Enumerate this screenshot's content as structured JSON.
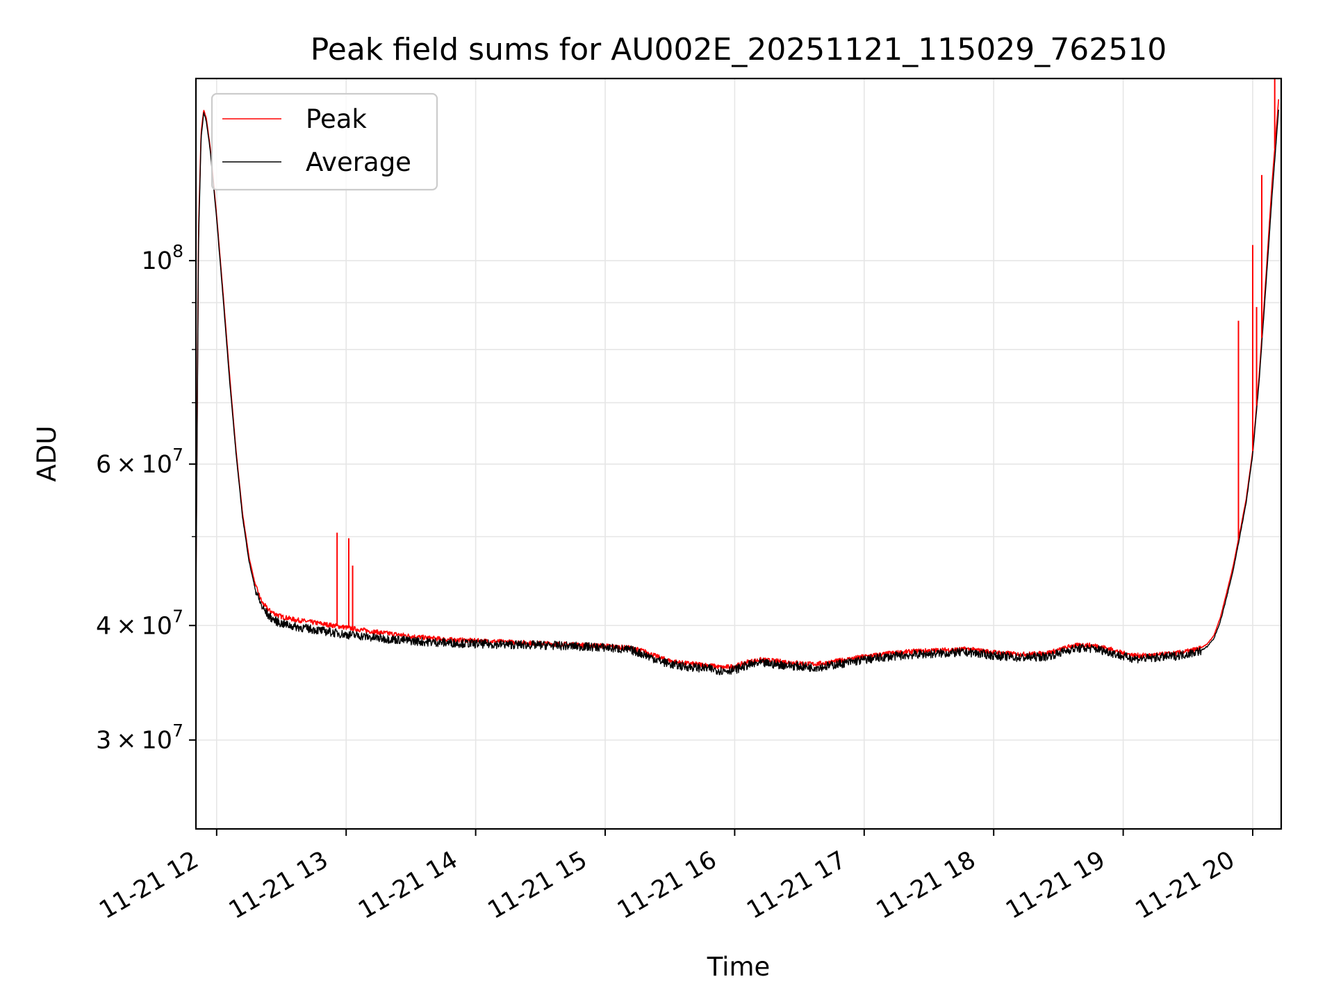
{
  "chart_data": {
    "type": "line",
    "title": "Peak field sums for AU002E_20251121_115029_762510",
    "xlabel": "Time",
    "ylabel": "ADU",
    "yscale": "log",
    "ylim": [
      24000000,
      158000000
    ],
    "xlim": [
      11.84,
      20.22
    ],
    "grid": true,
    "legend_position": "upper left",
    "x_ticks": [
      12,
      13,
      14,
      15,
      16,
      17,
      18,
      19,
      20
    ],
    "x_tick_labels": [
      "11-21 12",
      "11-21 13",
      "11-21 14",
      "11-21 15",
      "11-21 16",
      "11-21 17",
      "11-21 18",
      "11-21 19",
      "11-21 20"
    ],
    "y_ticks": [
      {
        "value": 100000000,
        "mantissa": "",
        "exponent": "8",
        "base": "10"
      },
      {
        "value": 60000000,
        "mantissa": "6",
        "exponent": "7",
        "base": "10"
      },
      {
        "value": 40000000,
        "mantissa": "4",
        "exponent": "7",
        "base": "10"
      },
      {
        "value": 30000000,
        "mantissa": "3",
        "exponent": "7",
        "base": "10"
      }
    ],
    "times_symbol": "×",
    "series": [
      {
        "name": "Peak",
        "color": "#ff0000",
        "x": [
          11.84,
          11.86,
          11.88,
          11.9,
          11.92,
          11.95,
          12.0,
          12.05,
          12.1,
          12.15,
          12.2,
          12.25,
          12.3,
          12.35,
          12.4,
          12.45,
          12.5,
          12.6,
          12.7,
          12.8,
          12.9,
          13.0,
          13.1,
          13.2,
          13.4,
          13.6,
          13.8,
          14.0,
          14.2,
          14.4,
          14.6,
          14.8,
          15.0,
          15.2,
          15.3,
          15.4,
          15.5,
          15.6,
          15.7,
          15.8,
          15.9,
          16.0,
          16.1,
          16.2,
          16.3,
          16.4,
          16.5,
          16.6,
          16.7,
          16.8,
          16.9,
          17.0,
          17.2,
          17.4,
          17.6,
          17.8,
          18.0,
          18.2,
          18.4,
          18.5,
          18.6,
          18.7,
          18.8,
          18.9,
          19.0,
          19.1,
          19.2,
          19.3,
          19.4,
          19.5,
          19.6,
          19.65,
          19.7,
          19.75,
          19.8,
          19.85,
          19.9,
          19.95,
          20.0,
          20.05,
          20.1,
          20.15,
          20.2
        ],
        "y": [
          44000000,
          108000000,
          138000000,
          146000000,
          143000000,
          133000000,
          112000000,
          92000000,
          75000000,
          62000000,
          53000000,
          47500000,
          44200000,
          42400000,
          41600000,
          41200000,
          40900000,
          40600000,
          40400000,
          40200000,
          40000000,
          39800000,
          39600000,
          39400000,
          39100000,
          38800000,
          38600000,
          38500000,
          38400000,
          38300000,
          38200000,
          38100000,
          38000000,
          37800000,
          37500000,
          37000000,
          36600000,
          36400000,
          36300000,
          36200000,
          36000000,
          36100000,
          36500000,
          36700000,
          36600000,
          36500000,
          36400000,
          36300000,
          36400000,
          36600000,
          36800000,
          37000000,
          37300000,
          37500000,
          37600000,
          37700000,
          37400000,
          37200000,
          37300000,
          37600000,
          38000000,
          38100000,
          38000000,
          37700000,
          37300000,
          37100000,
          37100000,
          37200000,
          37300000,
          37500000,
          37800000,
          38200000,
          39000000,
          40800000,
          43500000,
          46500000,
          50500000,
          55000000,
          62000000,
          75000000,
          95000000,
          122000000,
          150000000
        ],
        "spikes": [
          {
            "x": 12.93,
            "y": 50500000
          },
          {
            "x": 13.02,
            "y": 49800000
          },
          {
            "x": 13.05,
            "y": 46500000
          },
          {
            "x": 19.89,
            "y": 86000000
          },
          {
            "x": 20.0,
            "y": 104000000
          },
          {
            "x": 20.03,
            "y": 89000000
          },
          {
            "x": 20.07,
            "y": 124000000
          },
          {
            "x": 20.17,
            "y": 158000000
          }
        ]
      },
      {
        "name": "Average",
        "color": "#000000",
        "x": [
          11.84,
          11.86,
          11.88,
          11.9,
          11.92,
          11.95,
          12.0,
          12.05,
          12.1,
          12.15,
          12.2,
          12.25,
          12.3,
          12.35,
          12.4,
          12.45,
          12.5,
          12.6,
          12.7,
          12.8,
          12.9,
          13.0,
          13.1,
          13.2,
          13.4,
          13.6,
          13.8,
          14.0,
          14.2,
          14.4,
          14.6,
          14.8,
          15.0,
          15.2,
          15.3,
          15.4,
          15.5,
          15.6,
          15.7,
          15.8,
          15.9,
          16.0,
          16.1,
          16.2,
          16.3,
          16.4,
          16.5,
          16.6,
          16.7,
          16.8,
          16.9,
          17.0,
          17.2,
          17.4,
          17.6,
          17.8,
          18.0,
          18.2,
          18.4,
          18.5,
          18.6,
          18.7,
          18.8,
          18.9,
          19.0,
          19.1,
          19.2,
          19.3,
          19.4,
          19.5,
          19.6,
          19.65,
          19.7,
          19.75,
          19.8,
          19.85,
          19.9,
          19.95,
          20.0,
          20.05,
          20.1,
          20.15,
          20.2
        ],
        "y": [
          42000000,
          105000000,
          136000000,
          145000000,
          142000000,
          132000000,
          111000000,
          91000000,
          74000000,
          61500000,
          52500000,
          47000000,
          43700000,
          41900000,
          41000000,
          40500000,
          40200000,
          39900000,
          39700000,
          39500000,
          39300000,
          39100000,
          39000000,
          38800000,
          38600000,
          38400000,
          38300000,
          38200000,
          38150000,
          38100000,
          38050000,
          37950000,
          37850000,
          37600000,
          37200000,
          36700000,
          36300000,
          36100000,
          36000000,
          35900000,
          35700000,
          35800000,
          36200000,
          36400000,
          36300000,
          36200000,
          36100000,
          36000000,
          36100000,
          36300000,
          36500000,
          36700000,
          37000000,
          37200000,
          37300000,
          37400000,
          37100000,
          36900000,
          37000000,
          37300000,
          37700000,
          37800000,
          37700000,
          37400000,
          37000000,
          36800000,
          36850000,
          36950000,
          37050000,
          37250000,
          37550000,
          37950000,
          38700000,
          40400000,
          43000000,
          46000000,
          50000000,
          54500000,
          61500000,
          74000000,
          93000000,
          118000000,
          146000000
        ]
      }
    ]
  }
}
